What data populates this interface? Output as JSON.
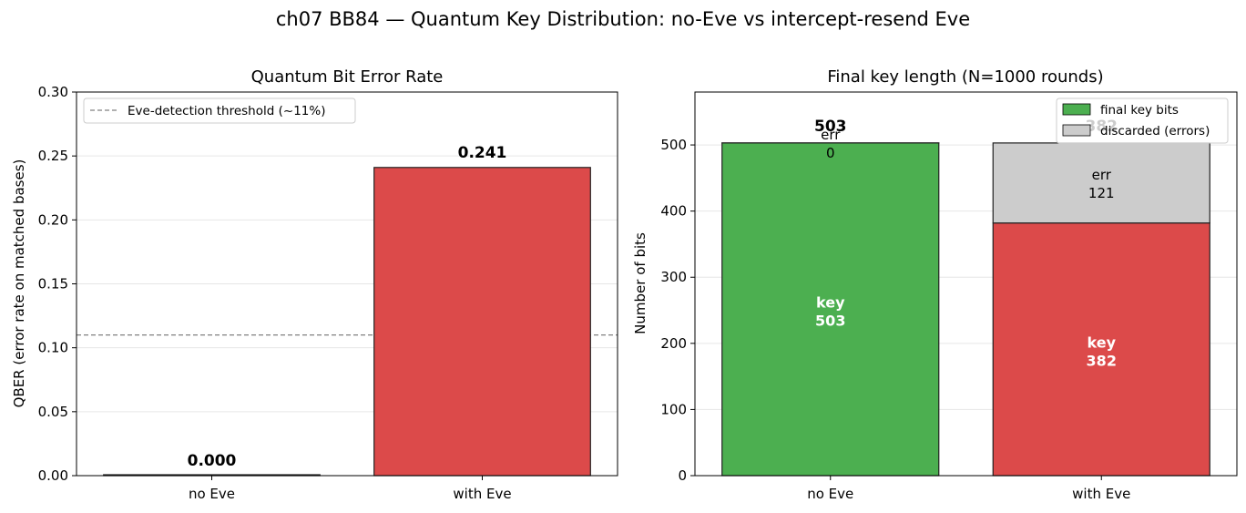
{
  "figure": {
    "suptitle": "ch07 BB84 — Quantum Key Distribution: no-Eve vs intercept-resend Eve"
  },
  "chart_data": [
    {
      "type": "bar",
      "title": "Quantum Bit Error Rate",
      "xlabel": "",
      "ylabel": "QBER (error rate on matched bases)",
      "categories": [
        "no Eve",
        "with Eve"
      ],
      "values": [
        0.0,
        0.241
      ],
      "value_labels": [
        "0.000",
        "0.241"
      ],
      "colors": [
        "#2ca02c",
        "#d62728"
      ],
      "ylim": [
        0,
        0.3
      ],
      "yticks": [
        0.0,
        0.05,
        0.1,
        0.15,
        0.2,
        0.25,
        0.3
      ],
      "ytick_labels": [
        "0.00",
        "0.05",
        "0.10",
        "0.15",
        "0.20",
        "0.25",
        "0.30"
      ],
      "threshold": {
        "value": 0.11,
        "label": "Eve-detection threshold (~11%)"
      },
      "legend_position": "upper-left",
      "grid": "y"
    },
    {
      "type": "bar",
      "stacked": true,
      "title": "Final key length (N=1000 rounds)",
      "xlabel": "",
      "ylabel": "Number of bits",
      "categories": [
        "no Eve",
        "with Eve"
      ],
      "series": [
        {
          "name": "final key bits",
          "values": [
            503,
            382
          ],
          "colors": [
            "#2ca02c",
            "#d62728"
          ],
          "label_prefix": "key"
        },
        {
          "name": "discarded (errors)",
          "values": [
            0,
            121
          ],
          "color": "#cccccc",
          "label_prefix": "err"
        }
      ],
      "top_labels": [
        "503",
        "382"
      ],
      "ylim": [
        0,
        580
      ],
      "yticks": [
        0,
        100,
        200,
        300,
        400,
        500
      ],
      "ytick_labels": [
        "0",
        "100",
        "200",
        "300",
        "400",
        "500"
      ],
      "legend_position": "upper-right",
      "grid": "y"
    }
  ]
}
